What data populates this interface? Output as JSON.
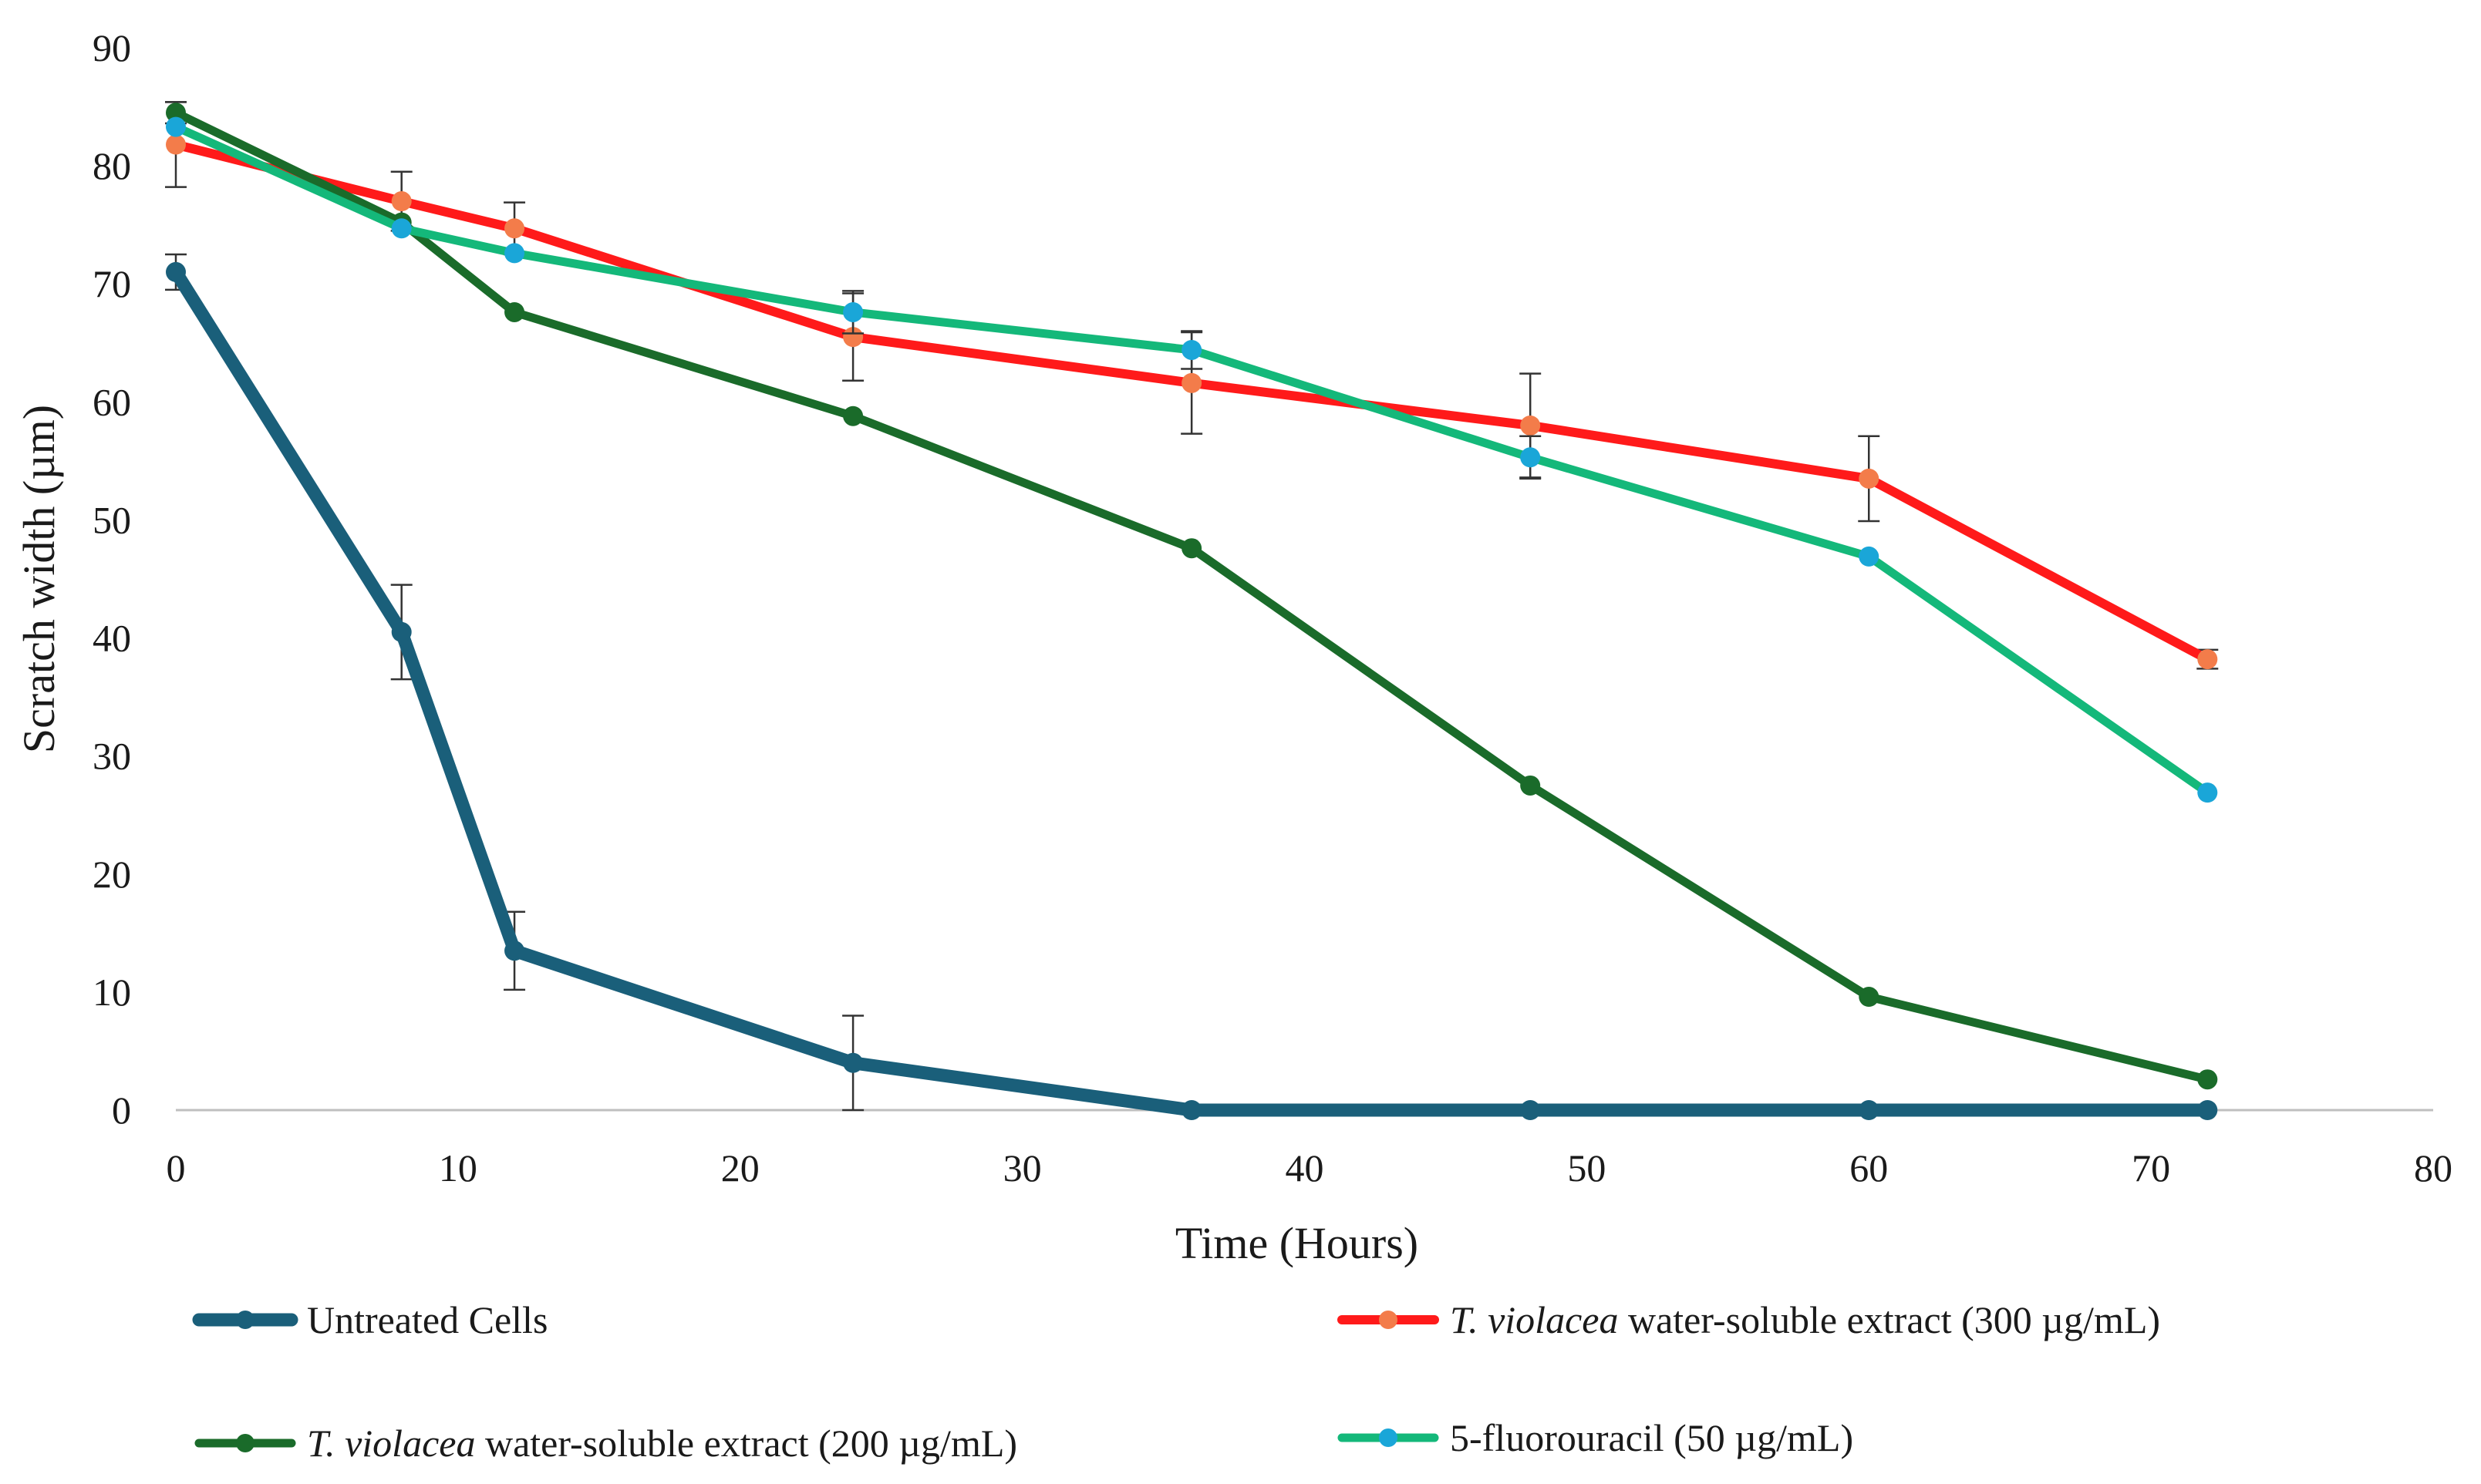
{
  "chart_data": {
    "type": "line",
    "xlabel": "Time  (Hours)",
    "ylabel": "Scratch width (µm)",
    "xlim": [
      0,
      80
    ],
    "ylim": [
      0,
      90
    ],
    "xticks": [
      0,
      10,
      20,
      30,
      40,
      50,
      60,
      70,
      80
    ],
    "yticks": [
      0,
      10,
      20,
      30,
      40,
      50,
      60,
      70,
      80,
      90
    ],
    "grid": false,
    "legend_position": "bottom",
    "series": [
      {
        "name": "Untreated Cells",
        "name_italic": "",
        "name_rest": "Untreated Cells",
        "color": "#1a5f7a",
        "marker_color": "#1a5f7a",
        "x": [
          0,
          8,
          12,
          24,
          36,
          48,
          60,
          72
        ],
        "y": [
          71,
          40.5,
          13.5,
          4,
          0,
          0,
          0,
          0
        ],
        "err": [
          1.5,
          4,
          3.3,
          4,
          0,
          0,
          0,
          0
        ]
      },
      {
        "name": "T. violacea water-soluble extract (300 µg/mL)",
        "name_italic": "T. violacea",
        "name_rest": " water-soluble extract (300 µg/mL)",
        "color": "#ff1a1a",
        "marker_color": "#f37c4a",
        "x": [
          0,
          8,
          12,
          24,
          36,
          48,
          60,
          72
        ],
        "y": [
          81.8,
          77,
          74.7,
          65.5,
          61.6,
          58,
          53.5,
          38.2
        ],
        "err": [
          3.6,
          2.5,
          2.2,
          3.7,
          4.3,
          4.4,
          3.6,
          0.8
        ]
      },
      {
        "name": "T. violacea water-soluble extract (200 µg/mL)",
        "name_italic": "T. violacea",
        "name_rest": " water-soluble extract (200 µg/mL)",
        "color": "#1a6b2a",
        "marker_color": "#1a6b2a",
        "x": [
          0,
          8,
          12,
          24,
          36,
          48,
          60,
          72
        ],
        "y": [
          84.5,
          75.2,
          67.6,
          58.8,
          47.6,
          27.5,
          9.6,
          2.6
        ],
        "err": [
          0.9,
          0,
          0,
          0,
          0,
          0,
          0,
          0
        ]
      },
      {
        "name": "5-fluorouracil (50 µg/mL)",
        "name_italic": "",
        "name_rest": "5-fluorouracil (50 µg/mL)",
        "color": "#14b87a",
        "marker_color": "#1aa6d8",
        "x": [
          0,
          8,
          12,
          24,
          36,
          48,
          60,
          72
        ],
        "y": [
          83.3,
          74.7,
          72.6,
          67.6,
          64.4,
          55.3,
          46.9,
          26.9
        ],
        "err": [
          0,
          0,
          0,
          1.8,
          1.6,
          1.8,
          0,
          0
        ]
      }
    ]
  }
}
